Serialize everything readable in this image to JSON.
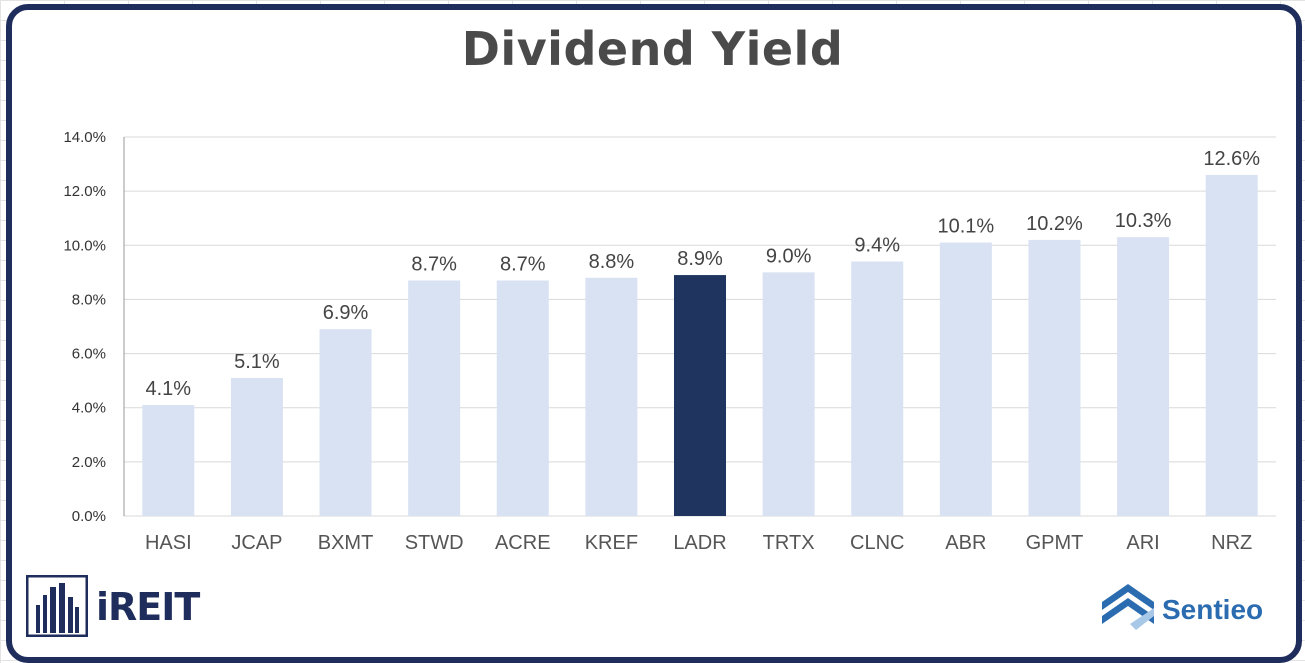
{
  "logos": {
    "ireit": "iREIT",
    "sentieo": "Sentieo"
  },
  "colors": {
    "default_bar": "#d9e2f3",
    "highlight_bar": "#1f3560",
    "grid": "#d9d9d9",
    "frame": "#1f2d5c"
  },
  "chart_data": {
    "type": "bar",
    "title": "Dividend Yield",
    "categories": [
      "HASI",
      "JCAP",
      "BXMT",
      "STWD",
      "ACRE",
      "KREF",
      "LADR",
      "TRTX",
      "CLNC",
      "ABR",
      "GPMT",
      "ARI",
      "NRZ"
    ],
    "values": [
      4.1,
      5.1,
      6.9,
      8.7,
      8.7,
      8.8,
      8.9,
      9.0,
      9.4,
      10.1,
      10.2,
      10.3,
      12.6
    ],
    "data_labels": [
      "4.1%",
      "5.1%",
      "6.9%",
      "8.7%",
      "8.7%",
      "8.8%",
      "8.9%",
      "9.0%",
      "9.4%",
      "10.1%",
      "10.2%",
      "10.3%",
      "12.6%"
    ],
    "highlight": "LADR",
    "ylim": [
      0,
      14
    ],
    "yticks": [
      "0.0%",
      "2.0%",
      "4.0%",
      "6.0%",
      "8.0%",
      "10.0%",
      "12.0%",
      "14.0%"
    ],
    "grid": true,
    "legend": "none",
    "xlabel": "",
    "ylabel": ""
  }
}
